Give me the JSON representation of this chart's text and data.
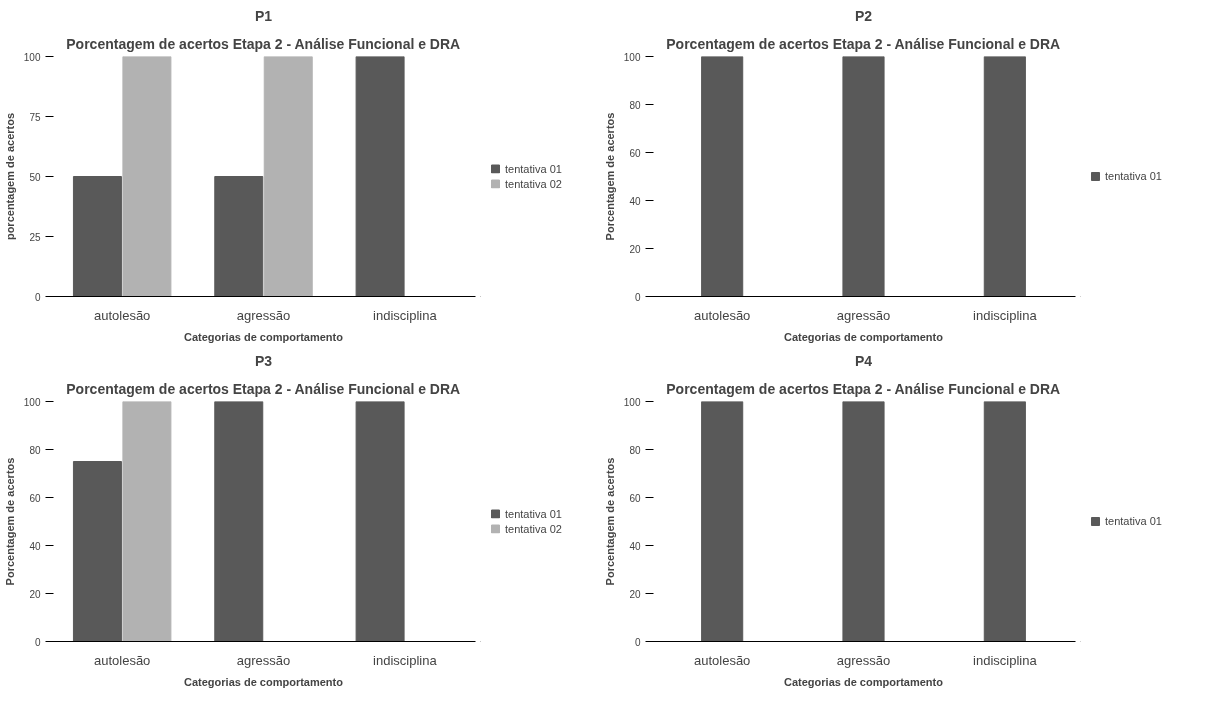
{
  "chart_data": [
    {
      "type": "bar",
      "title": "P1",
      "subtitle": "Porcentagem de acertos Etapa 2 - Análise Funcional e DRA",
      "xlabel": "Categorias de comportamento",
      "ylabel": "porcentagem de acertos",
      "categories": [
        "autolesão",
        "agressão",
        "indisciplina"
      ],
      "ylim": [
        0,
        100
      ],
      "yticks": [
        0,
        25,
        50,
        75,
        100
      ],
      "legend": "right",
      "series": [
        {
          "name": "tentativa 01",
          "color": "#595959",
          "values": [
            50,
            50,
            100
          ]
        },
        {
          "name": "tentativa 02",
          "color": "#b2b2b2",
          "values": [
            100,
            100,
            null
          ]
        }
      ]
    },
    {
      "type": "bar",
      "title": "P2",
      "subtitle": "Porcentagem de acertos Etapa 2 - Análise Funcional e DRA",
      "xlabel": "Categorias de comportamento",
      "ylabel": "Porcentagem de acertos",
      "categories": [
        "autolesão",
        "agressão",
        "indisciplina"
      ],
      "ylim": [
        0,
        100
      ],
      "yticks": [
        0,
        20,
        40,
        60,
        80,
        100
      ],
      "legend": "right",
      "series": [
        {
          "name": "tentativa 01",
          "color": "#595959",
          "values": [
            100,
            100,
            100
          ]
        }
      ]
    },
    {
      "type": "bar",
      "title": "P3",
      "subtitle": "Porcentagem de acertos Etapa 2 - Análise Funcional e DRA",
      "xlabel": "Categorias de comportamento",
      "ylabel": "Porcentagem de acertos",
      "categories": [
        "autolesão",
        "agressão",
        "indisciplina"
      ],
      "ylim": [
        0,
        100
      ],
      "yticks": [
        0,
        20,
        40,
        60,
        80,
        100
      ],
      "legend": "right",
      "series": [
        {
          "name": "tentativa 01",
          "color": "#595959",
          "values": [
            75,
            100,
            100
          ]
        },
        {
          "name": "tentativa 02",
          "color": "#b2b2b2",
          "values": [
            100,
            null,
            null
          ]
        }
      ]
    },
    {
      "type": "bar",
      "title": "P4",
      "subtitle": "Porcentagem de acertos Etapa 2 - Análise Funcional e DRA",
      "xlabel": "Categorias de comportamento",
      "ylabel": "Porcentagem de acertos",
      "categories": [
        "autolesão",
        "agressão",
        "indisciplina"
      ],
      "ylim": [
        0,
        100
      ],
      "yticks": [
        0,
        20,
        40,
        60,
        80,
        100
      ],
      "legend": "right",
      "series": [
        {
          "name": "tentativa 01",
          "color": "#595959",
          "values": [
            100,
            100,
            100
          ]
        }
      ]
    }
  ]
}
